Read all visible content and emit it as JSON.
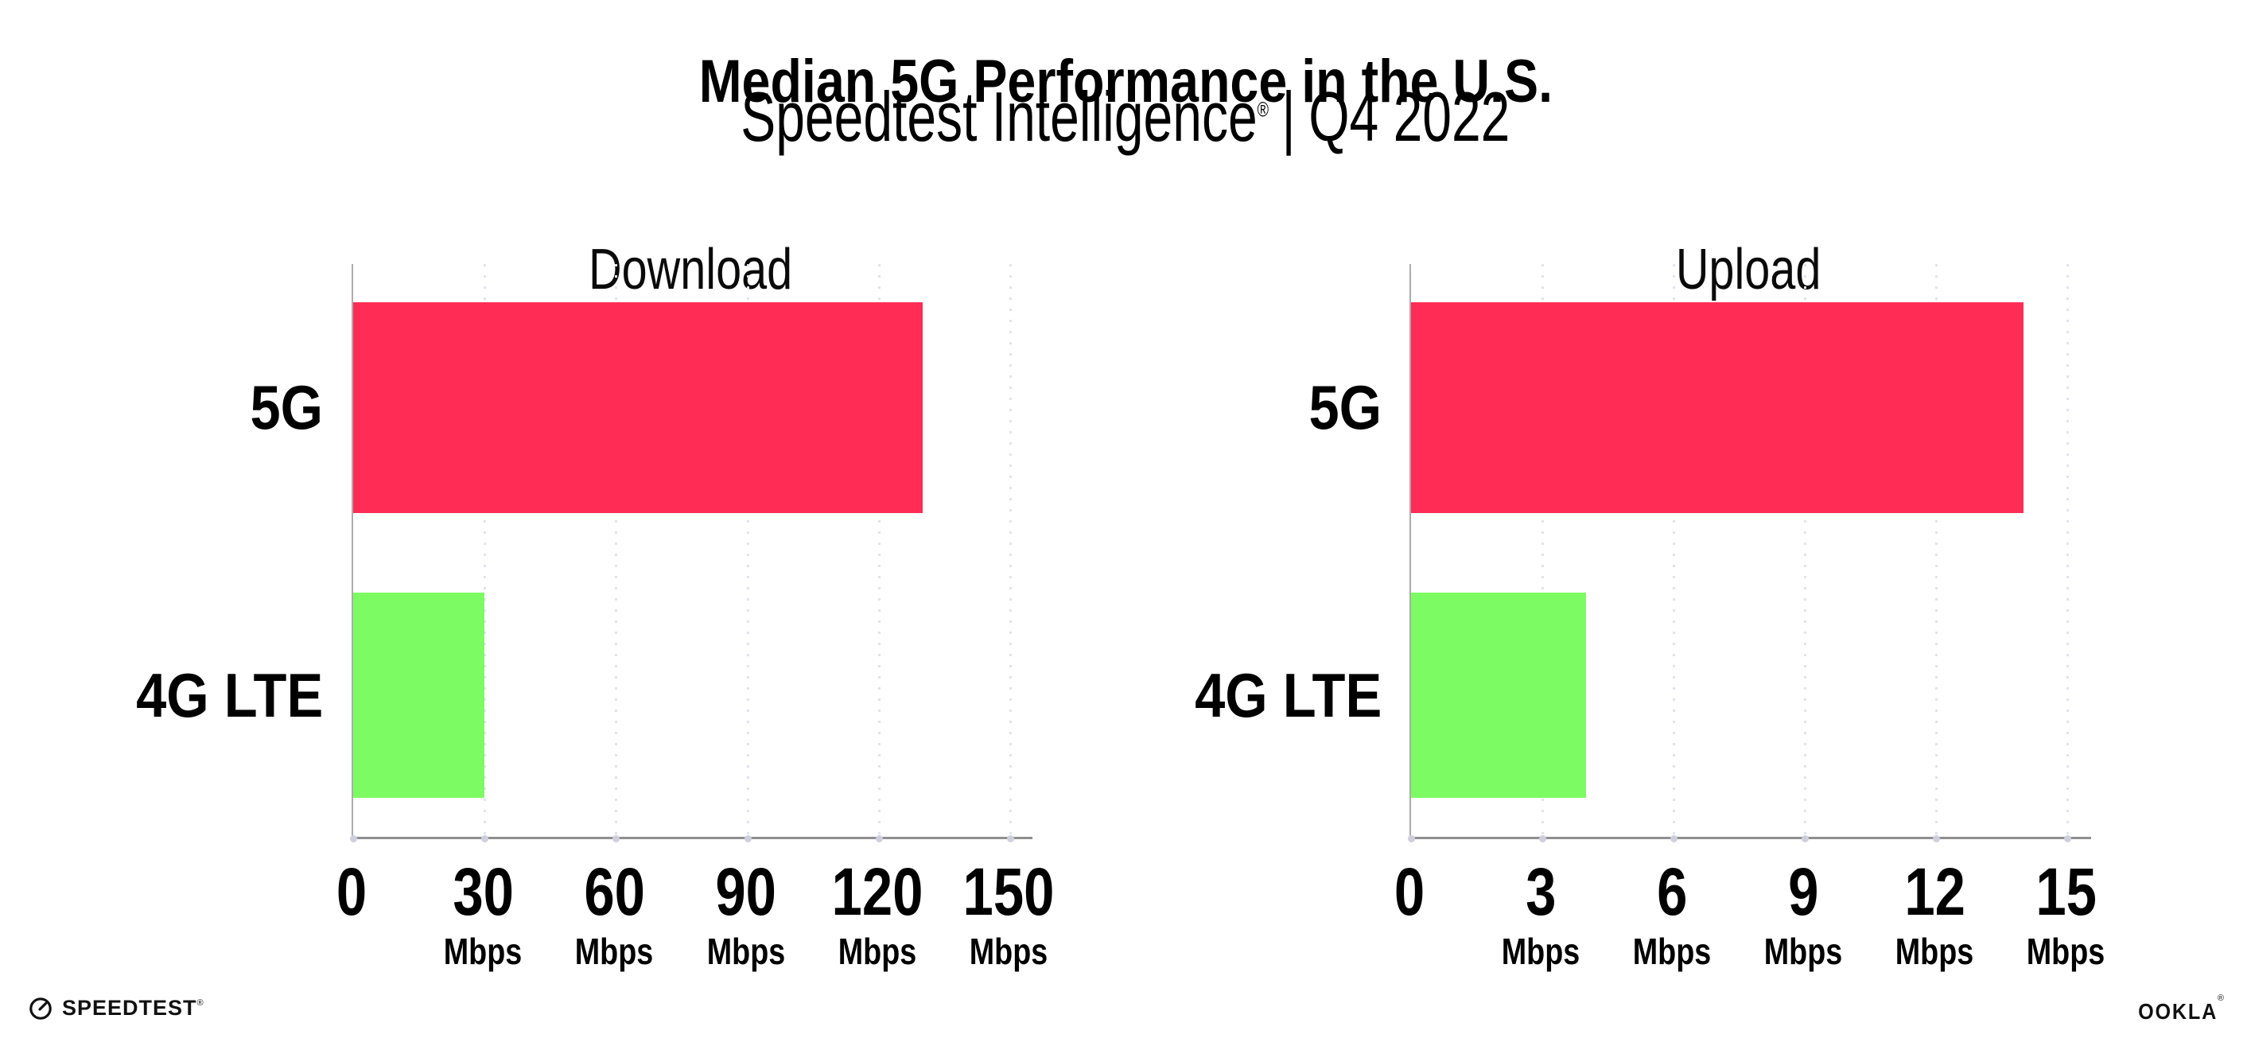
{
  "page": {
    "title": "Median 5G Performance in the U.S.",
    "subtitle": {
      "product": "Speedtest Intelligence",
      "trademark": "®",
      "separator": "|",
      "period": "Q4 2022"
    }
  },
  "colors": {
    "bar_5g": "#FF2D55",
    "bar_4g_lte": "#7DFB63",
    "gridline": "#E3E3ED",
    "axis_line": "#8F8F8F",
    "tick_dot": "#CFCFDC",
    "text": "#000000"
  },
  "chart_data": [
    {
      "type": "bar",
      "orientation": "horizontal",
      "title": "Download",
      "categories": [
        "5G",
        "4G LTE"
      ],
      "values": [
        130,
        30
      ],
      "unit": "Mbps",
      "xticks": [
        0,
        30,
        60,
        90,
        120,
        150
      ],
      "tick_unit_label": "Mbps",
      "xlim": [
        0,
        154.7
      ],
      "grid": "dotted-vertical",
      "legend": "none",
      "bar_colors": [
        "#FF2D55",
        "#7DFB63"
      ]
    },
    {
      "type": "bar",
      "orientation": "horizontal",
      "title": "Upload",
      "categories": [
        "5G",
        "4G LTE"
      ],
      "values": [
        14,
        4
      ],
      "unit": "Mbps",
      "xticks": [
        0,
        3,
        6,
        9,
        12,
        15
      ],
      "tick_unit_label": "Mbps",
      "xlim": [
        0,
        15.5
      ],
      "grid": "dotted-vertical",
      "legend": "none",
      "bar_colors": [
        "#FF2D55",
        "#7DFB63"
      ]
    }
  ],
  "footer": {
    "speedtest": {
      "icon": "speedometer-gauge-icon",
      "wordmark": "SPEEDTEST",
      "trademark": "®"
    },
    "ookla": {
      "wordmark": "OOKLA",
      "trademark": "®"
    }
  }
}
